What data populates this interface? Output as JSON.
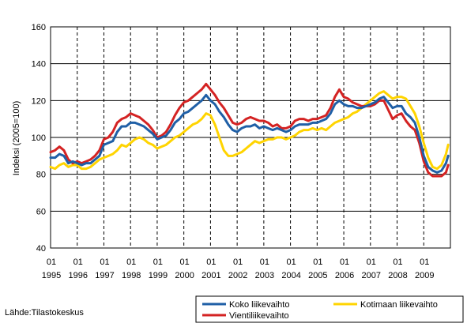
{
  "chart_data": {
    "type": "line",
    "ylabel": "Indeksi (2005=100)",
    "ylim": [
      40,
      160
    ],
    "yticks": [
      40,
      60,
      80,
      100,
      120,
      140,
      160
    ],
    "x_start": "1995-01",
    "x_end": "2009-12",
    "xtick_month": "01",
    "xtick_years": [
      "1995",
      "1996",
      "1997",
      "1998",
      "1999",
      "2000",
      "2001",
      "2002",
      "2003",
      "2004",
      "2005",
      "2006",
      "2007",
      "2008",
      "2009"
    ],
    "grid": "vertical-dashed",
    "legend_placement": "bottom-right",
    "source": "Lähde:Tilastokeskus",
    "series": [
      {
        "name": "Koko liikevaihto",
        "color": "#1f5fa6",
        "points": [
          [
            "1995-01",
            89
          ],
          [
            "1995-03",
            89
          ],
          [
            "1995-05",
            91
          ],
          [
            "1995-07",
            90
          ],
          [
            "1995-09",
            86
          ],
          [
            "1995-11",
            87
          ],
          [
            "1996-01",
            86
          ],
          [
            "1996-03",
            85
          ],
          [
            "1996-05",
            86
          ],
          [
            "1996-07",
            86
          ],
          [
            "1996-09",
            88
          ],
          [
            "1996-11",
            90
          ],
          [
            "1997-01",
            96
          ],
          [
            "1997-03",
            97
          ],
          [
            "1997-05",
            98
          ],
          [
            "1997-07",
            103
          ],
          [
            "1997-09",
            106
          ],
          [
            "1997-11",
            106
          ],
          [
            "1998-01",
            108
          ],
          [
            "1998-03",
            108
          ],
          [
            "1998-05",
            107
          ],
          [
            "1998-07",
            106
          ],
          [
            "1998-09",
            104
          ],
          [
            "1998-11",
            102
          ],
          [
            "1999-01",
            99
          ],
          [
            "1999-03",
            100
          ],
          [
            "1999-05",
            101
          ],
          [
            "1999-07",
            104
          ],
          [
            "1999-09",
            108
          ],
          [
            "1999-11",
            110
          ],
          [
            "2000-01",
            113
          ],
          [
            "2000-03",
            114
          ],
          [
            "2000-05",
            116
          ],
          [
            "2000-07",
            118
          ],
          [
            "2000-09",
            120
          ],
          [
            "2000-11",
            123
          ],
          [
            "2001-01",
            120
          ],
          [
            "2001-03",
            118
          ],
          [
            "2001-05",
            114
          ],
          [
            "2001-07",
            111
          ],
          [
            "2001-09",
            107
          ],
          [
            "2001-11",
            104
          ],
          [
            "2002-01",
            103
          ],
          [
            "2002-03",
            105
          ],
          [
            "2002-05",
            106
          ],
          [
            "2002-07",
            106
          ],
          [
            "2002-09",
            107
          ],
          [
            "2002-11",
            105
          ],
          [
            "2003-01",
            106
          ],
          [
            "2003-03",
            105
          ],
          [
            "2003-05",
            104
          ],
          [
            "2003-07",
            105
          ],
          [
            "2003-09",
            104
          ],
          [
            "2003-11",
            103
          ],
          [
            "2004-01",
            104
          ],
          [
            "2004-03",
            106
          ],
          [
            "2004-05",
            107
          ],
          [
            "2004-07",
            107
          ],
          [
            "2004-09",
            107
          ],
          [
            "2004-11",
            108
          ],
          [
            "2005-01",
            108
          ],
          [
            "2005-03",
            109
          ],
          [
            "2005-05",
            110
          ],
          [
            "2005-07",
            113
          ],
          [
            "2005-09",
            118
          ],
          [
            "2005-11",
            120
          ],
          [
            "2006-01",
            118
          ],
          [
            "2006-03",
            117
          ],
          [
            "2006-05",
            117
          ],
          [
            "2006-07",
            116
          ],
          [
            "2006-09",
            116
          ],
          [
            "2006-11",
            117
          ],
          [
            "2007-01",
            118
          ],
          [
            "2007-03",
            119
          ],
          [
            "2007-05",
            121
          ],
          [
            "2007-07",
            122
          ],
          [
            "2007-09",
            119
          ],
          [
            "2007-11",
            116
          ],
          [
            "2008-01",
            117
          ],
          [
            "2008-03",
            117
          ],
          [
            "2008-05",
            113
          ],
          [
            "2008-07",
            111
          ],
          [
            "2008-09",
            108
          ],
          [
            "2008-11",
            100
          ],
          [
            "2009-01",
            90
          ],
          [
            "2009-03",
            84
          ],
          [
            "2009-05",
            82
          ],
          [
            "2009-07",
            81
          ],
          [
            "2009-09",
            82
          ],
          [
            "2009-11",
            86
          ],
          [
            "2009-12",
            90
          ]
        ]
      },
      {
        "name": "Kotimaan liikevaihto",
        "color": "#ffd400",
        "points": [
          [
            "1995-01",
            84
          ],
          [
            "1995-03",
            83
          ],
          [
            "1995-05",
            85
          ],
          [
            "1995-07",
            86
          ],
          [
            "1995-09",
            84
          ],
          [
            "1995-11",
            85
          ],
          [
            "1996-01",
            85
          ],
          [
            "1996-03",
            83
          ],
          [
            "1996-05",
            83
          ],
          [
            "1996-07",
            84
          ],
          [
            "1996-09",
            86
          ],
          [
            "1996-11",
            88
          ],
          [
            "1997-01",
            89
          ],
          [
            "1997-03",
            90
          ],
          [
            "1997-05",
            91
          ],
          [
            "1997-07",
            93
          ],
          [
            "1997-09",
            96
          ],
          [
            "1997-11",
            95
          ],
          [
            "1998-01",
            97
          ],
          [
            "1998-03",
            99
          ],
          [
            "1998-05",
            100
          ],
          [
            "1998-07",
            99
          ],
          [
            "1998-09",
            97
          ],
          [
            "1998-11",
            96
          ],
          [
            "1999-01",
            94
          ],
          [
            "1999-03",
            95
          ],
          [
            "1999-05",
            96
          ],
          [
            "1999-07",
            98
          ],
          [
            "1999-09",
            100
          ],
          [
            "1999-11",
            101
          ],
          [
            "2000-01",
            103
          ],
          [
            "2000-03",
            105
          ],
          [
            "2000-05",
            107
          ],
          [
            "2000-07",
            108
          ],
          [
            "2000-09",
            110
          ],
          [
            "2000-11",
            113
          ],
          [
            "2001-01",
            112
          ],
          [
            "2001-03",
            107
          ],
          [
            "2001-05",
            100
          ],
          [
            "2001-07",
            93
          ],
          [
            "2001-09",
            90
          ],
          [
            "2001-11",
            90
          ],
          [
            "2002-01",
            91
          ],
          [
            "2002-03",
            92
          ],
          [
            "2002-05",
            94
          ],
          [
            "2002-07",
            96
          ],
          [
            "2002-09",
            98
          ],
          [
            "2002-11",
            97
          ],
          [
            "2003-01",
            98
          ],
          [
            "2003-03",
            99
          ],
          [
            "2003-05",
            99
          ],
          [
            "2003-07",
            100
          ],
          [
            "2003-09",
            100
          ],
          [
            "2003-11",
            99
          ],
          [
            "2004-01",
            100
          ],
          [
            "2004-03",
            101
          ],
          [
            "2004-05",
            103
          ],
          [
            "2004-07",
            104
          ],
          [
            "2004-09",
            104
          ],
          [
            "2004-11",
            105
          ],
          [
            "2005-01",
            104
          ],
          [
            "2005-03",
            105
          ],
          [
            "2005-05",
            104
          ],
          [
            "2005-07",
            106
          ],
          [
            "2005-09",
            108
          ],
          [
            "2005-11",
            109
          ],
          [
            "2006-01",
            110
          ],
          [
            "2006-03",
            111
          ],
          [
            "2006-05",
            113
          ],
          [
            "2006-07",
            114
          ],
          [
            "2006-09",
            116
          ],
          [
            "2006-11",
            118
          ],
          [
            "2007-01",
            120
          ],
          [
            "2007-03",
            122
          ],
          [
            "2007-05",
            124
          ],
          [
            "2007-07",
            125
          ],
          [
            "2007-09",
            123
          ],
          [
            "2007-11",
            121
          ],
          [
            "2008-01",
            122
          ],
          [
            "2008-03",
            122
          ],
          [
            "2008-05",
            121
          ],
          [
            "2008-07",
            117
          ],
          [
            "2008-09",
            113
          ],
          [
            "2008-11",
            106
          ],
          [
            "2009-01",
            97
          ],
          [
            "2009-03",
            89
          ],
          [
            "2009-05",
            84
          ],
          [
            "2009-07",
            83
          ],
          [
            "2009-09",
            85
          ],
          [
            "2009-11",
            91
          ],
          [
            "2009-12",
            96
          ]
        ]
      },
      {
        "name": "Vientiliikevaihto",
        "color": "#d42323",
        "points": [
          [
            "1995-01",
            92
          ],
          [
            "1995-03",
            93
          ],
          [
            "1995-05",
            95
          ],
          [
            "1995-07",
            93
          ],
          [
            "1995-09",
            88
          ],
          [
            "1995-11",
            86
          ],
          [
            "1996-01",
            87
          ],
          [
            "1996-03",
            86
          ],
          [
            "1996-05",
            87
          ],
          [
            "1996-07",
            88
          ],
          [
            "1996-09",
            90
          ],
          [
            "1996-11",
            93
          ],
          [
            "1997-01",
            99
          ],
          [
            "1997-03",
            100
          ],
          [
            "1997-05",
            103
          ],
          [
            "1997-07",
            108
          ],
          [
            "1997-09",
            110
          ],
          [
            "1997-11",
            111
          ],
          [
            "1998-01",
            113
          ],
          [
            "1998-03",
            112
          ],
          [
            "1998-05",
            111
          ],
          [
            "1998-07",
            109
          ],
          [
            "1998-09",
            107
          ],
          [
            "1998-11",
            104
          ],
          [
            "1999-01",
            100
          ],
          [
            "1999-03",
            101
          ],
          [
            "1999-05",
            103
          ],
          [
            "1999-07",
            107
          ],
          [
            "1999-09",
            112
          ],
          [
            "1999-11",
            116
          ],
          [
            "2000-01",
            119
          ],
          [
            "2000-03",
            120
          ],
          [
            "2000-05",
            122
          ],
          [
            "2000-07",
            124
          ],
          [
            "2000-09",
            126
          ],
          [
            "2000-11",
            129
          ],
          [
            "2001-01",
            126
          ],
          [
            "2001-03",
            123
          ],
          [
            "2001-05",
            119
          ],
          [
            "2001-07",
            116
          ],
          [
            "2001-09",
            112
          ],
          [
            "2001-11",
            108
          ],
          [
            "2002-01",
            107
          ],
          [
            "2002-03",
            108
          ],
          [
            "2002-05",
            110
          ],
          [
            "2002-07",
            111
          ],
          [
            "2002-09",
            110
          ],
          [
            "2002-11",
            109
          ],
          [
            "2003-01",
            109
          ],
          [
            "2003-03",
            108
          ],
          [
            "2003-05",
            106
          ],
          [
            "2003-07",
            107
          ],
          [
            "2003-09",
            105
          ],
          [
            "2003-11",
            105
          ],
          [
            "2004-01",
            106
          ],
          [
            "2004-03",
            109
          ],
          [
            "2004-05",
            110
          ],
          [
            "2004-07",
            110
          ],
          [
            "2004-09",
            109
          ],
          [
            "2004-11",
            110
          ],
          [
            "2005-01",
            110
          ],
          [
            "2005-03",
            111
          ],
          [
            "2005-05",
            112
          ],
          [
            "2005-07",
            116
          ],
          [
            "2005-09",
            122
          ],
          [
            "2005-11",
            126
          ],
          [
            "2006-01",
            122
          ],
          [
            "2006-03",
            121
          ],
          [
            "2006-05",
            119
          ],
          [
            "2006-07",
            118
          ],
          [
            "2006-09",
            117
          ],
          [
            "2006-11",
            117
          ],
          [
            "2007-01",
            117
          ],
          [
            "2007-03",
            118
          ],
          [
            "2007-05",
            120
          ],
          [
            "2007-07",
            120
          ],
          [
            "2007-09",
            115
          ],
          [
            "2007-11",
            110
          ],
          [
            "2008-01",
            112
          ],
          [
            "2008-03",
            113
          ],
          [
            "2008-05",
            109
          ],
          [
            "2008-07",
            106
          ],
          [
            "2008-09",
            104
          ],
          [
            "2008-11",
            97
          ],
          [
            "2009-01",
            87
          ],
          [
            "2009-03",
            81
          ],
          [
            "2009-05",
            79
          ],
          [
            "2009-07",
            79
          ],
          [
            "2009-09",
            79
          ],
          [
            "2009-11",
            81
          ],
          [
            "2009-12",
            85
          ]
        ]
      }
    ]
  }
}
